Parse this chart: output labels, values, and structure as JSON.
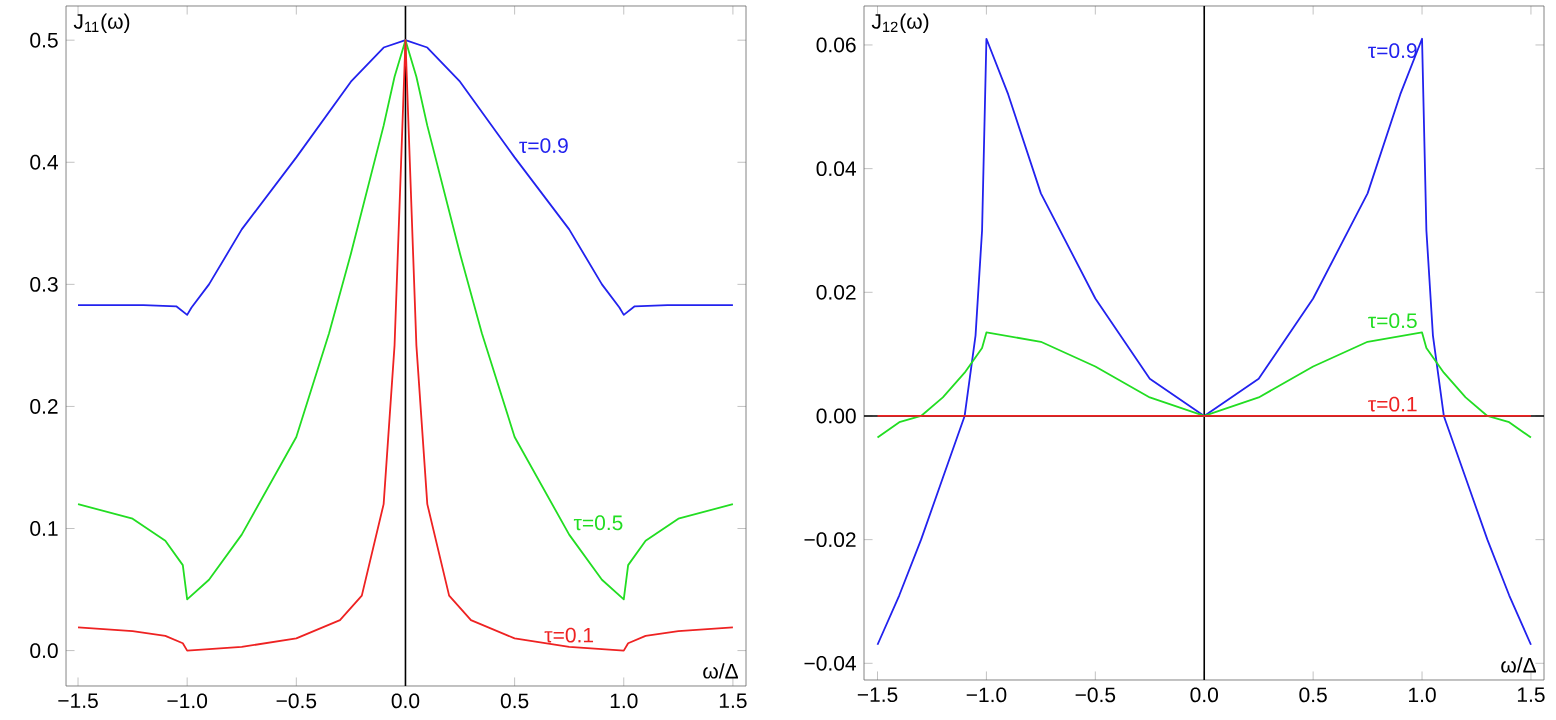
{
  "chart_data": [
    {
      "type": "line",
      "xlabel": "ω/Δ",
      "ylabel": "J$_{11}$(ω)",
      "xlim": [
        -1.555,
        1.56
      ],
      "ylim": [
        -0.029,
        0.528
      ],
      "xticks": [
        {
          "value": -1.5,
          "label": "−1.5"
        },
        {
          "value": -1.0,
          "label": "−1.0"
        },
        {
          "value": -0.5,
          "label": "−0.5"
        },
        {
          "value": 0,
          "label": "0.0"
        },
        {
          "value": 0.5,
          "label": "0.5"
        },
        {
          "value": 1.0,
          "label": "1.0"
        },
        {
          "value": 1.5,
          "label": "1.5"
        }
      ],
      "yticks": [
        {
          "value": 0,
          "label": "0.0"
        },
        {
          "value": 0.1,
          "label": "0.1"
        },
        {
          "value": 0.2,
          "label": "0.2"
        },
        {
          "value": 0.3,
          "label": "0.3"
        },
        {
          "value": 0.4,
          "label": "0.4"
        },
        {
          "value": 0.5,
          "label": "0.5"
        }
      ],
      "ref_lines": [
        {
          "axis": "x",
          "value": 0,
          "color": "#000000"
        }
      ],
      "series": [
        {
          "name": "τ=0.9",
          "color": "#2222ee",
          "x": [
            -1.5,
            -1.2,
            -1.05,
            -1.0,
            -0.98,
            -0.9,
            -0.75,
            -0.5,
            -0.25,
            -0.1,
            0,
            0.1,
            0.25,
            0.5,
            0.75,
            0.9,
            0.98,
            1.0,
            1.05,
            1.2,
            1.5
          ],
          "values": [
            0.283,
            0.283,
            0.282,
            0.275,
            0.281,
            0.3,
            0.345,
            0.404,
            0.466,
            0.494,
            0.5,
            0.494,
            0.466,
            0.404,
            0.345,
            0.3,
            0.281,
            0.275,
            0.282,
            0.283,
            0.283
          ]
        },
        {
          "name": "τ=0.5",
          "color": "#22dd22",
          "x": [
            -1.5,
            -1.25,
            -1.1,
            -1.02,
            -1.0,
            -0.9,
            -0.75,
            -0.5,
            -0.35,
            -0.25,
            -0.1,
            -0.05,
            0,
            0.05,
            0.1,
            0.25,
            0.35,
            0.5,
            0.75,
            0.9,
            1.0,
            1.02,
            1.1,
            1.25,
            1.5
          ],
          "values": [
            0.12,
            0.108,
            0.09,
            0.07,
            0.042,
            0.058,
            0.095,
            0.175,
            0.26,
            0.325,
            0.43,
            0.47,
            0.5,
            0.47,
            0.43,
            0.325,
            0.26,
            0.175,
            0.095,
            0.058,
            0.042,
            0.07,
            0.09,
            0.108,
            0.12
          ]
        },
        {
          "name": "τ=0.1",
          "color": "#ee2222",
          "x": [
            -1.5,
            -1.25,
            -1.1,
            -1.02,
            -1.0,
            -0.75,
            -0.5,
            -0.3,
            -0.2,
            -0.1,
            -0.05,
            -0.02,
            0,
            0.02,
            0.05,
            0.1,
            0.2,
            0.3,
            0.5,
            0.75,
            1.0,
            1.02,
            1.1,
            1.25,
            1.5
          ],
          "values": [
            0.019,
            0.016,
            0.012,
            0.006,
            0.0,
            0.003,
            0.01,
            0.025,
            0.045,
            0.12,
            0.25,
            0.4,
            0.5,
            0.4,
            0.25,
            0.12,
            0.045,
            0.025,
            0.01,
            0.003,
            0.0,
            0.006,
            0.012,
            0.016,
            0.019
          ]
        }
      ]
    },
    {
      "type": "line",
      "xlabel": "ω/Δ",
      "ylabel": "J$_{12}$(ω)",
      "xlim": [
        -1.562,
        1.56
      ],
      "ylim": [
        -0.0427,
        0.0663
      ],
      "xticks": [
        {
          "value": -1.5,
          "label": "−1.5"
        },
        {
          "value": -1.0,
          "label": "−1.0"
        },
        {
          "value": -0.5,
          "label": "−0.5"
        },
        {
          "value": 0,
          "label": "0.0"
        },
        {
          "value": 0.5,
          "label": "0.5"
        },
        {
          "value": 1.0,
          "label": "1.0"
        },
        {
          "value": 1.5,
          "label": "1.5"
        }
      ],
      "yticks": [
        {
          "value": -0.04,
          "label": "−0.04"
        },
        {
          "value": -0.02,
          "label": "−0.02"
        },
        {
          "value": 0,
          "label": "0.00"
        },
        {
          "value": 0.02,
          "label": "0.02"
        },
        {
          "value": 0.04,
          "label": "0.04"
        },
        {
          "value": 0.06,
          "label": "0.06"
        }
      ],
      "ref_lines": [
        {
          "axis": "x",
          "value": 0,
          "color": "#000000"
        },
        {
          "axis": "y",
          "value": 0,
          "color": "#000000"
        }
      ],
      "series": [
        {
          "name": "τ=0.9",
          "color": "#2222ee",
          "x": [
            -1.5,
            -1.4,
            -1.3,
            -1.2,
            -1.1,
            -1.05,
            -1.02,
            -1.0,
            -0.9,
            -0.75,
            -0.5,
            -0.25,
            0,
            0.25,
            0.5,
            0.75,
            0.9,
            1.0,
            1.02,
            1.05,
            1.1,
            1.2,
            1.3,
            1.4,
            1.5
          ],
          "values": [
            -0.037,
            -0.029,
            -0.02,
            -0.01,
            0.0,
            0.013,
            0.03,
            0.061,
            0.052,
            0.036,
            0.019,
            0.006,
            0,
            0.006,
            0.019,
            0.036,
            0.052,
            0.061,
            0.03,
            0.013,
            0.0,
            -0.01,
            -0.02,
            -0.029,
            -0.037
          ]
        },
        {
          "name": "τ=0.5",
          "color": "#22dd22",
          "x": [
            -1.5,
            -1.4,
            -1.3,
            -1.2,
            -1.1,
            -1.02,
            -1.0,
            -0.75,
            -0.5,
            -0.25,
            0,
            0.25,
            0.5,
            0.75,
            1.0,
            1.02,
            1.1,
            1.2,
            1.3,
            1.4,
            1.5
          ],
          "values": [
            -0.0035,
            -0.001,
            0.0,
            0.003,
            0.007,
            0.011,
            0.0135,
            0.012,
            0.008,
            0.003,
            0,
            0.003,
            0.008,
            0.012,
            0.0135,
            0.011,
            0.007,
            0.003,
            0.0,
            -0.001,
            -0.0035
          ]
        },
        {
          "name": "τ=0.1",
          "color": "#ee2222",
          "x": [
            -1.5,
            -1.0,
            -0.5,
            0,
            0.5,
            1.0,
            1.5
          ],
          "values": [
            0,
            0,
            0,
            0,
            0,
            0,
            0
          ]
        }
      ]
    }
  ]
}
